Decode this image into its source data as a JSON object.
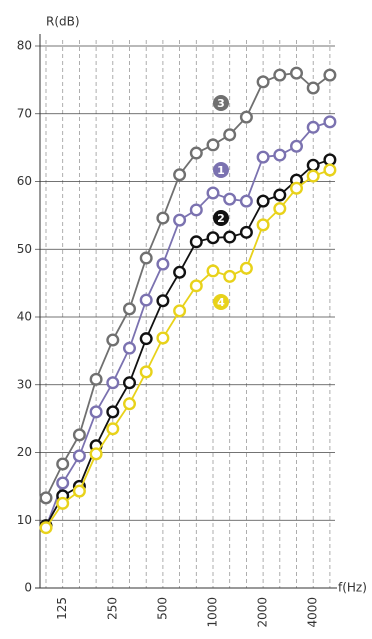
{
  "chart_data": {
    "type": "line",
    "y_label": "R(dB)",
    "x_label": "f(Hz)",
    "categories": [
      null,
      "125",
      null,
      null,
      "250",
      null,
      null,
      "500",
      null,
      null,
      "1000",
      null,
      null,
      "2000",
      null,
      null,
      "4000",
      null
    ],
    "ylim": [
      0,
      80
    ],
    "yticks": [
      0,
      10,
      20,
      30,
      40,
      50,
      60,
      70,
      80
    ],
    "grid": true,
    "series": [
      {
        "name": "1",
        "color": "#7b72b0",
        "values": [
          9,
          15.5,
          19.5,
          26,
          30.3,
          35.4,
          42.5,
          47.8,
          54.3,
          55.8,
          58.3,
          57.4,
          57.1,
          63.6,
          63.9,
          65.2,
          68,
          68.8
        ]
      },
      {
        "name": "2",
        "color": "#111111",
        "values": [
          9.2,
          13.6,
          15,
          21,
          26,
          30.3,
          36.8,
          42.4,
          46.6,
          51.1,
          51.7,
          51.8,
          52.5,
          57.1,
          58,
          60.2,
          62.4,
          63.2
        ]
      },
      {
        "name": "3",
        "color": "#707070",
        "values": [
          13.3,
          18.3,
          22.6,
          30.8,
          36.6,
          41.2,
          48.7,
          54.6,
          61,
          64.2,
          65.4,
          66.9,
          69.5,
          74.7,
          75.7,
          76,
          73.8,
          75.7
        ]
      },
      {
        "name": "4",
        "color": "#e8d21a",
        "values": [
          8.9,
          12.5,
          14.3,
          19.8,
          23.5,
          27.2,
          31.9,
          36.9,
          40.9,
          44.6,
          46.8,
          46,
          47.2,
          53.6,
          56,
          59,
          60.8,
          61.7
        ]
      }
    ]
  }
}
